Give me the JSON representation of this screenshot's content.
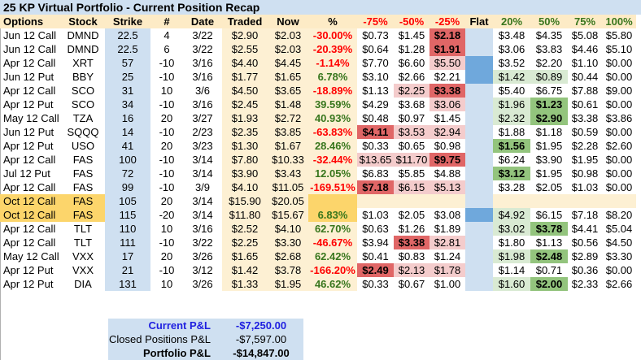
{
  "title": "25 KP Virtual Portfolio - Current Position Recap",
  "headers": [
    "Options",
    "Stock",
    "Strike",
    "#",
    "Date",
    "Traded",
    "Now",
    "%",
    "-75%",
    "-50%",
    "-25%",
    "Flat",
    "20%",
    "50%",
    "75%",
    "100%"
  ],
  "rows": [
    [
      "Jun 12 Call",
      "DMND",
      "22.5",
      "4",
      "3/22",
      "$2.90",
      "$2.03",
      "-30.00%",
      "$0.73",
      "$1.45",
      "$2.18",
      "",
      "$3.48",
      "$4.35",
      "$5.08",
      "$5.80"
    ],
    [
      "Jun 12 Call",
      "DMND",
      "22.5",
      "6",
      "3/22",
      "$2.55",
      "$2.03",
      "-20.39%",
      "$0.64",
      "$1.28",
      "$1.91",
      "",
      "$3.06",
      "$3.83",
      "$4.46",
      "$5.10"
    ],
    [
      "Apr 12 Call",
      "XRT",
      "57",
      "-10",
      "3/16",
      "$4.40",
      "$4.45",
      "-1.14%",
      "$7.70",
      "$6.60",
      "$5.50",
      "",
      "$3.52",
      "$2.20",
      "$1.10",
      "$0.00"
    ],
    [
      "Jun 12 Put",
      "BBY",
      "25",
      "-10",
      "3/16",
      "$1.77",
      "$1.65",
      "6.78%",
      "$3.10",
      "$2.66",
      "$2.21",
      "",
      "$1.42",
      "$0.89",
      "$0.44",
      "$0.00"
    ],
    [
      "Apr 12 Call",
      "SCO",
      "31",
      "10",
      "3/6",
      "$4.50",
      "$3.65",
      "-18.89%",
      "$1.13",
      "$2.25",
      "$3.38",
      "",
      "$5.40",
      "$6.75",
      "$7.88",
      "$9.00"
    ],
    [
      "Apr 12 Put",
      "SCO",
      "34",
      "-10",
      "3/16",
      "$2.45",
      "$1.48",
      "39.59%",
      "$4.29",
      "$3.68",
      "$3.06",
      "",
      "$1.96",
      "$1.23",
      "$0.61",
      "$0.00"
    ],
    [
      "May 12 Call",
      "TZA",
      "16",
      "20",
      "3/27",
      "$1.93",
      "$2.72",
      "40.93%",
      "$0.48",
      "$0.97",
      "$1.45",
      "",
      "$2.32",
      "$2.90",
      "$3.38",
      "$3.86"
    ],
    [
      "Jun 12 Put",
      "SQQQ",
      "14",
      "-10",
      "2/23",
      "$2.35",
      "$3.85",
      "-63.83%",
      "$4.11",
      "$3.53",
      "$2.94",
      "",
      "$1.88",
      "$1.18",
      "$0.59",
      "$0.00"
    ],
    [
      "Apr 12 Put",
      "USO",
      "41",
      "20",
      "3/23",
      "$1.30",
      "$1.67",
      "28.46%",
      "$0.33",
      "$0.65",
      "$0.98",
      "",
      "$1.56",
      "$1.95",
      "$2.28",
      "$2.60"
    ],
    [
      "Apr 12 Call",
      "FAS",
      "100",
      "-10",
      "3/14",
      "$7.80",
      "$10.33",
      "-32.44%",
      "$13.65",
      "$11.70",
      "$9.75",
      "",
      "$6.24",
      "$3.90",
      "$1.95",
      "$0.00"
    ],
    [
      "Jul 12 Put",
      "FAS",
      "72",
      "-10",
      "3/14",
      "$3.90",
      "$3.43",
      "12.05%",
      "$6.83",
      "$5.85",
      "$4.88",
      "",
      "$3.12",
      "$1.95",
      "$0.98",
      "$0.00"
    ],
    [
      "Apr 12 Call",
      "FAS",
      "99",
      "-10",
      "3/9",
      "$4.10",
      "$11.05",
      "-169.51%",
      "$7.18",
      "$6.15",
      "$5.13",
      "",
      "$3.28",
      "$2.05",
      "$1.03",
      "$0.00"
    ],
    [
      "Oct 12 Call",
      "FAS",
      "105",
      "20",
      "3/14",
      "$15.90",
      "$20.05",
      "",
      "",
      "",
      "",
      "",
      "",
      "",
      "",
      ""
    ],
    [
      "Oct 12 Call",
      "FAS",
      "115",
      "-20",
      "3/14",
      "$11.80",
      "$15.67",
      "6.83%",
      "$1.03",
      "$2.05",
      "$3.08",
      "",
      "$4.92",
      "$6.15",
      "$7.18",
      "$8.20"
    ],
    [
      "Apr 12 Call",
      "TLT",
      "110",
      "10",
      "3/16",
      "$2.52",
      "$4.10",
      "62.70%",
      "$0.63",
      "$1.26",
      "$1.89",
      "",
      "$3.02",
      "$3.78",
      "$4.41",
      "$5.04"
    ],
    [
      "Apr 12 Call",
      "TLT",
      "111",
      "-10",
      "3/22",
      "$2.25",
      "$3.30",
      "-46.67%",
      "$3.94",
      "$3.38",
      "$2.81",
      "",
      "$1.80",
      "$1.13",
      "$0.56",
      "$4.50"
    ],
    [
      "May 12 Call",
      "VXX",
      "17",
      "20",
      "3/26",
      "$1.65",
      "$2.68",
      "62.42%",
      "$0.41",
      "$0.83",
      "$1.24",
      "",
      "$1.98",
      "$2.48",
      "$2.89",
      "$3.30"
    ],
    [
      "Apr 12 Put",
      "VXX",
      "21",
      "-10",
      "3/12",
      "$1.42",
      "$3.78",
      "-166.20%",
      "$2.49",
      "$2.13",
      "$1.78",
      "",
      "$1.14",
      "$0.71",
      "$0.36",
      "$0.00"
    ],
    [
      "Apr 12 Put",
      "DIA",
      "131",
      "10",
      "3/26",
      "$1.33",
      "$1.95",
      "46.62%",
      "$0.33",
      "$0.67",
      "$1.00",
      "",
      "$1.60",
      "$2.00",
      "$2.33",
      "$2.66"
    ]
  ],
  "cell_styles": {
    "0": {
      "10": "redDark"
    },
    "1": {
      "10": "redDark"
    },
    "2": {
      "10": "redLight",
      "11": "blueDark"
    },
    "3": {
      "11": "blueDark",
      "12": "greenLight",
      "13": "greenLight"
    },
    "4": {
      "9": "redLight",
      "10": "redDark"
    },
    "5": {
      "10": "redLight",
      "12": "greenLight",
      "13": "greenDark"
    },
    "6": {
      "12": "greenLight",
      "13": "greenDark"
    },
    "7": {
      "8": "redDark",
      "9": "redLight",
      "10": "redLight"
    },
    "8": {
      "12": "greenDark"
    },
    "9": {
      "8": "redLight",
      "9": "redLight",
      "10": "redDark"
    },
    "10": {
      "12": "greenDark"
    },
    "11": {
      "8": "redDark",
      "9": "redLight",
      "10": "redLight"
    },
    "13": {
      "11": "blueDark",
      "12": "greenLight"
    },
    "14": {
      "12": "greenLight",
      "13": "greenDark"
    },
    "15": {
      "9": "redDark",
      "10": "redLight"
    },
    "16": {
      "12": "greenLight",
      "13": "greenDark"
    },
    "17": {
      "8": "redDark",
      "9": "redLight",
      "10": "redLight"
    },
    "18": {
      "12": "greenLight",
      "13": "greenDark"
    }
  },
  "summary": {
    "current_label": "Current P&L",
    "current_value": "-$7,250.00",
    "closed_label": "Closed Positions P&L",
    "closed_value": "-$7,597.00",
    "portfolio_label": "Portfolio P&L",
    "portfolio_value": "-$14,847.00"
  },
  "colors": {
    "current": "#1f1fe0",
    "header_bg": "#fdebc6",
    "blue": "#cfe0f1"
  }
}
